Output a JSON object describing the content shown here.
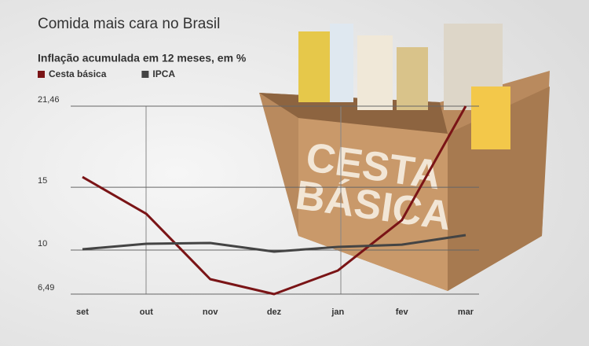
{
  "chart_data": {
    "type": "line",
    "title": "Comida mais cara no Brasil",
    "subtitle": "Inflação acumulada em 12 meses, em %",
    "categories": [
      "set",
      "out",
      "nov",
      "dez",
      "jan",
      "fev",
      "mar"
    ],
    "series": [
      {
        "name": "Cesta básica",
        "color": "#7a1416",
        "values": [
          15.82,
          12.88,
          7.68,
          6.49,
          8.37,
          12.38,
          21.46
        ]
      },
      {
        "name": "IPCA",
        "color": "#444444",
        "values": [
          10.06,
          10.5,
          10.56,
          9.87,
          10.25,
          10.43,
          11.19
        ]
      }
    ],
    "ylim": [
      6.49,
      21.46
    ],
    "yticks": [
      {
        "value": 21.46,
        "label": "21,46"
      },
      15,
      10,
      {
        "value": 6.49,
        "label": "6,49"
      }
    ],
    "grid": true,
    "illustration_text": [
      "CESTA",
      "BÁSICA"
    ]
  }
}
